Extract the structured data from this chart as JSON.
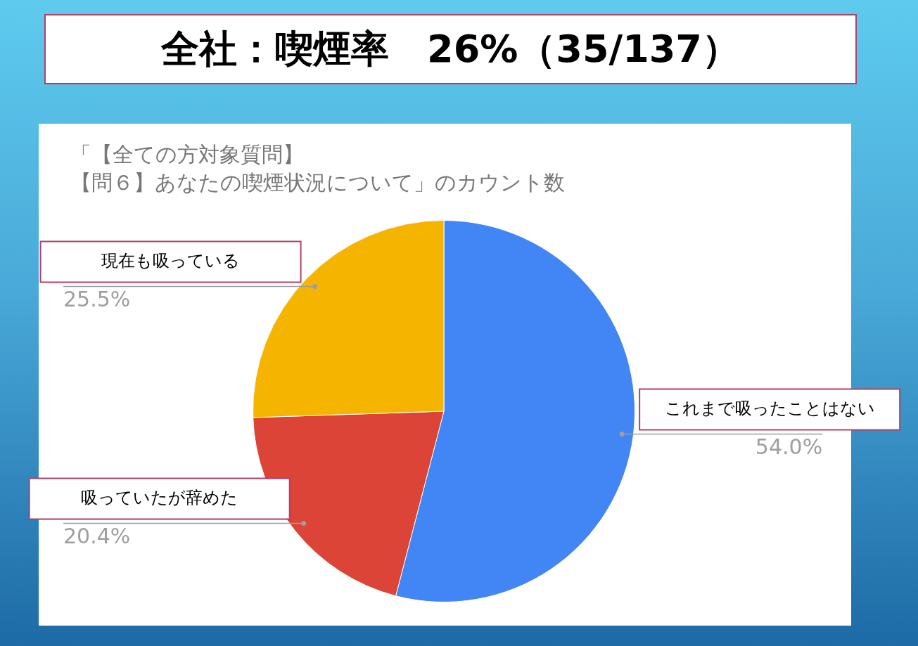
{
  "chart_data": {
    "type": "pie",
    "title": "全社：喫煙率　26%（35/137）",
    "subtitle": "「【全ての方対象質問】【問６】あなたの喫煙状況について」のカウント数",
    "categories": [
      "これまで吸ったことはない",
      "吸っていたが辞めた",
      "現在も吸っている"
    ],
    "values": [
      54.0,
      20.4,
      25.5
    ],
    "value_labels": [
      "54.0%",
      "20.4%",
      "25.5%"
    ],
    "colors": [
      "#4285f4",
      "#db4437",
      "#f4b400"
    ],
    "legend": false
  }
}
